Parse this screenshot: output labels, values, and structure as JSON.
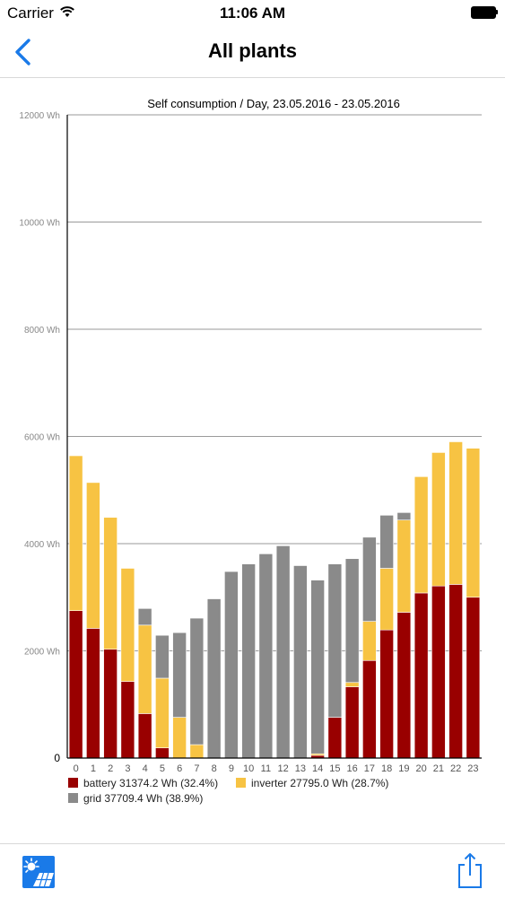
{
  "status_bar": {
    "carrier": "Carrier",
    "time": "11:06 AM"
  },
  "nav": {
    "title": "All plants"
  },
  "colors": {
    "battery": "#990000",
    "inverter": "#f7c343",
    "grid": "#8a8a8a",
    "accent": "#1a7ae8"
  },
  "icons": {
    "back": "chevron-left-icon",
    "plant": "solar-plant-icon",
    "share": "share-icon"
  },
  "chart_data": {
    "type": "bar",
    "stacked": true,
    "title": "Self consumption / Day, 23.05.2016 - 23.05.2016",
    "categories": [
      "0",
      "1",
      "2",
      "3",
      "4",
      "5",
      "6",
      "7",
      "8",
      "9",
      "10",
      "11",
      "12",
      "13",
      "14",
      "15",
      "16",
      "17",
      "18",
      "19",
      "20",
      "21",
      "22",
      "23"
    ],
    "series": [
      {
        "name": "battery",
        "values": [
          2750,
          2420,
          2030,
          1430,
          830,
          190,
          0,
          0,
          0,
          0,
          0,
          0,
          0,
          0,
          50,
          760,
          1330,
          1820,
          2390,
          2720,
          3080,
          3210,
          3240,
          3000
        ]
      },
      {
        "name": "inverter",
        "values": [
          2890,
          2720,
          2460,
          2110,
          1650,
          1300,
          760,
          250,
          0,
          0,
          0,
          0,
          0,
          0,
          30,
          0,
          80,
          730,
          1150,
          1720,
          2170,
          2490,
          2660,
          2780
        ]
      },
      {
        "name": "grid",
        "values": [
          0,
          0,
          0,
          0,
          310,
          800,
          1580,
          2360,
          2970,
          3480,
          3620,
          3810,
          3960,
          3590,
          3240,
          2860,
          2310,
          1570,
          990,
          140,
          0,
          0,
          0,
          0
        ]
      }
    ],
    "legend": [
      {
        "series": "battery",
        "label": "battery 31374.2 Wh (32.4%)"
      },
      {
        "series": "inverter",
        "label": "inverter 27795.0 Wh (28.7%)"
      },
      {
        "series": "grid",
        "label": "grid 37709.4 Wh (38.9%)"
      }
    ],
    "y_ticks": [
      0,
      2000,
      4000,
      6000,
      8000,
      10000,
      12000
    ],
    "y_tick_labels": [
      "0",
      "2000 Wh",
      "4000 Wh",
      "6000 Wh",
      "8000 Wh",
      "10000 Wh",
      "12000 Wh"
    ],
    "ylim": [
      0,
      12000
    ],
    "grid": true,
    "legend_position": "bottom-left"
  }
}
